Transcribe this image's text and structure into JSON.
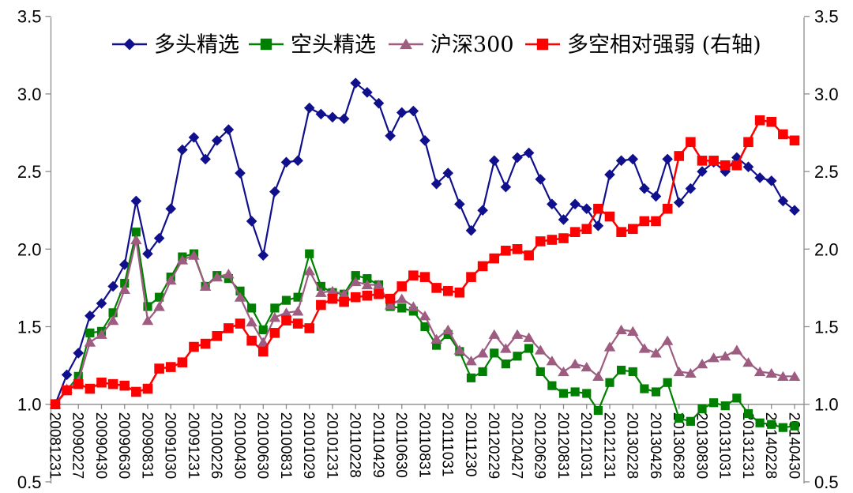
{
  "page": {
    "background": "#FFFFFF"
  },
  "chart_data": {
    "type": "line",
    "title": "",
    "legend_position": "top-center",
    "grid": false,
    "n_points": 65,
    "category_axis_crosses_at": 1.0,
    "axis_color": "#8C8C8C",
    "text_color": "#000000",
    "x_axis": {
      "points_per_tick": 2,
      "label_rotation_deg": 90,
      "tick_labels": [
        "20081231",
        "20090227",
        "20090430",
        "20090630",
        "20090831",
        "20091030",
        "20091231",
        "20100226",
        "20100430",
        "20100630",
        "20100831",
        "20101029",
        "20101231",
        "20110228",
        "20110429",
        "20110630",
        "20110831",
        "20111031",
        "20111230",
        "20120229",
        "20120427",
        "20120629",
        "20120831",
        "20121031",
        "20121231",
        "20130228",
        "20130426",
        "20130628",
        "20130830",
        "20131031",
        "20131231",
        "20140228",
        "20140430"
      ]
    },
    "y_axis_left": {
      "min": 0.5,
      "max": 3.5,
      "step": 0.5,
      "tick_labels": [
        "0.5",
        "1.0",
        "1.5",
        "2.0",
        "2.5",
        "3.0",
        "3.5"
      ]
    },
    "y_axis_right": {
      "min": 0.5,
      "max": 3.5,
      "step": 0.5,
      "tick_labels": [
        "0.5",
        "1.0",
        "1.5",
        "2.0",
        "2.5",
        "3.0",
        "3.5"
      ]
    },
    "series": [
      {
        "name": "多头精选",
        "color": "#10108C",
        "marker": "diamond",
        "axis": "left",
        "values": [
          1.0,
          1.19,
          1.33,
          1.57,
          1.65,
          1.76,
          1.9,
          2.31,
          1.97,
          2.07,
          2.26,
          2.64,
          2.72,
          2.58,
          2.7,
          2.77,
          2.49,
          2.18,
          1.96,
          2.37,
          2.56,
          2.57,
          2.91,
          2.87,
          2.85,
          2.84,
          3.07,
          3.01,
          2.94,
          2.73,
          2.88,
          2.89,
          2.7,
          2.42,
          2.49,
          2.29,
          2.12,
          2.25,
          2.57,
          2.4,
          2.59,
          2.62,
          2.45,
          2.29,
          2.19,
          2.29,
          2.26,
          2.15,
          2.48,
          2.57,
          2.58,
          2.39,
          2.34,
          2.58,
          2.3,
          2.39,
          2.5,
          2.56,
          2.5,
          2.59,
          2.53,
          2.46,
          2.44,
          2.31,
          2.25
        ]
      },
      {
        "name": "空头精选",
        "color": "#008000",
        "marker": "square",
        "axis": "left",
        "values": [
          1.0,
          1.09,
          1.18,
          1.46,
          1.47,
          1.59,
          1.78,
          2.11,
          1.63,
          1.69,
          1.82,
          1.95,
          1.97,
          1.76,
          1.83,
          1.81,
          1.73,
          1.62,
          1.48,
          1.62,
          1.67,
          1.69,
          1.97,
          1.76,
          1.72,
          1.71,
          1.83,
          1.81,
          1.77,
          1.63,
          1.62,
          1.6,
          1.5,
          1.38,
          1.45,
          1.34,
          1.17,
          1.21,
          1.33,
          1.26,
          1.31,
          1.36,
          1.21,
          1.12,
          1.07,
          1.08,
          1.07,
          0.96,
          1.14,
          1.22,
          1.21,
          1.1,
          1.08,
          1.14,
          0.91,
          0.89,
          0.97,
          1.01,
          0.99,
          1.04,
          0.94,
          0.88,
          0.87,
          0.85,
          0.86
        ]
      },
      {
        "name": "沪深300",
        "color": "#9D5C80",
        "marker": "triangle",
        "axis": "left",
        "values": [
          1.0,
          1.1,
          1.15,
          1.4,
          1.45,
          1.54,
          1.74,
          2.06,
          1.54,
          1.63,
          1.8,
          1.93,
          1.96,
          1.76,
          1.82,
          1.84,
          1.69,
          1.53,
          1.4,
          1.56,
          1.59,
          1.6,
          1.86,
          1.72,
          1.73,
          1.71,
          1.79,
          1.77,
          1.77,
          1.64,
          1.68,
          1.63,
          1.57,
          1.42,
          1.48,
          1.35,
          1.28,
          1.33,
          1.45,
          1.36,
          1.45,
          1.43,
          1.35,
          1.28,
          1.21,
          1.26,
          1.24,
          1.18,
          1.37,
          1.48,
          1.47,
          1.36,
          1.33,
          1.41,
          1.21,
          1.2,
          1.26,
          1.3,
          1.31,
          1.35,
          1.27,
          1.21,
          1.2,
          1.18,
          1.18
        ]
      },
      {
        "name": "多空相对强弱 (右轴)",
        "color": "#FF0000",
        "marker": "square",
        "axis": "right",
        "values": [
          1.0,
          1.09,
          1.13,
          1.1,
          1.14,
          1.13,
          1.12,
          1.08,
          1.1,
          1.23,
          1.24,
          1.27,
          1.37,
          1.39,
          1.44,
          1.49,
          1.52,
          1.41,
          1.34,
          1.46,
          1.54,
          1.52,
          1.49,
          1.64,
          1.68,
          1.66,
          1.69,
          1.7,
          1.71,
          1.68,
          1.76,
          1.83,
          1.82,
          1.75,
          1.73,
          1.72,
          1.82,
          1.89,
          1.94,
          1.99,
          2.0,
          1.96,
          2.05,
          2.06,
          2.07,
          2.11,
          2.13,
          2.26,
          2.21,
          2.11,
          2.13,
          2.18,
          2.18,
          2.26,
          2.6,
          2.69,
          2.57,
          2.57,
          2.54,
          2.54,
          2.69,
          2.83,
          2.82,
          2.74,
          2.7
        ]
      }
    ]
  }
}
